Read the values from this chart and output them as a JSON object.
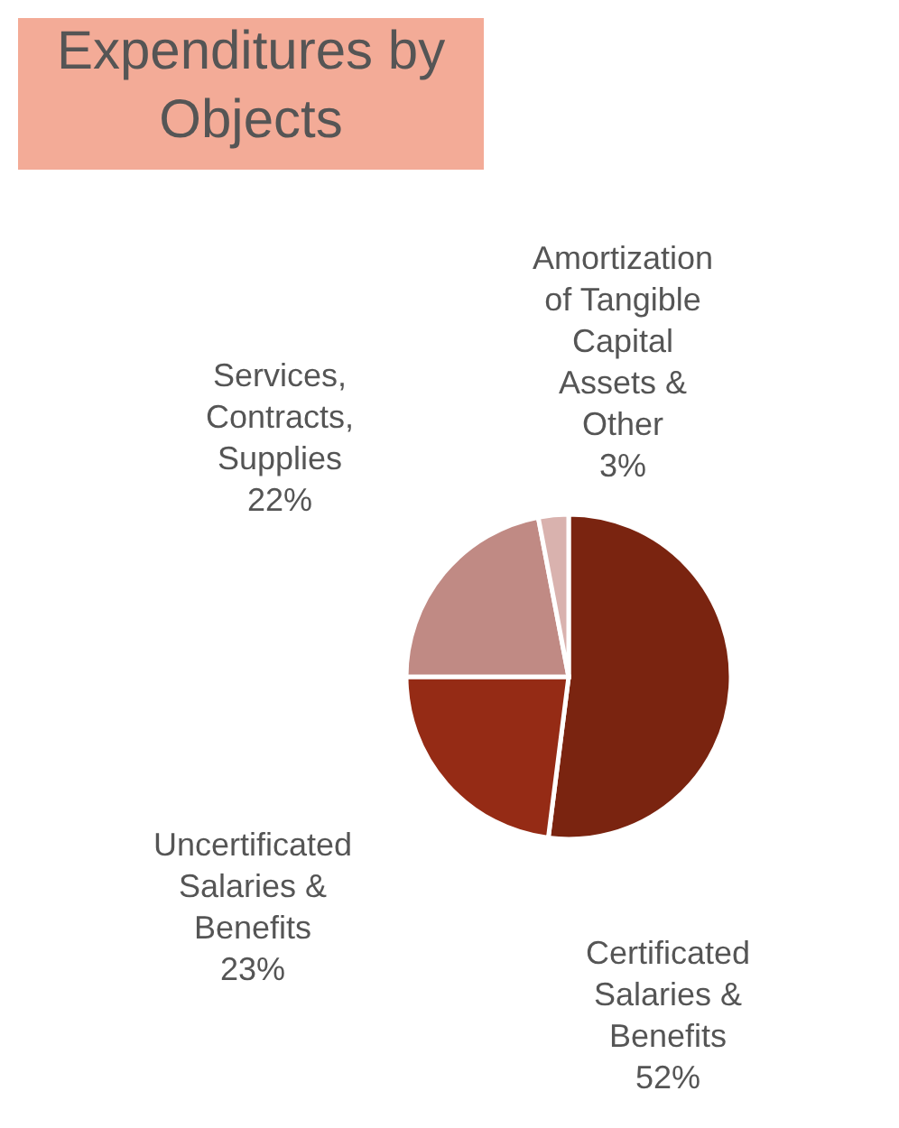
{
  "chart_data": {
    "type": "pie",
    "title": "Expenditures by Objects",
    "categories": [
      "Certificated Salaries & Benefits",
      "Uncertificated Salaries & Benefits",
      "Services, Contracts, Supplies",
      "Amortization of Tangible Capital Assets & Other"
    ],
    "values": [
      52,
      23,
      22,
      3
    ],
    "value_labels": [
      "52%",
      "23%",
      "22%",
      "3%"
    ],
    "colors": [
      "#7a2410",
      "#952b15",
      "#c08a84",
      "#d9b2ae"
    ]
  }
}
